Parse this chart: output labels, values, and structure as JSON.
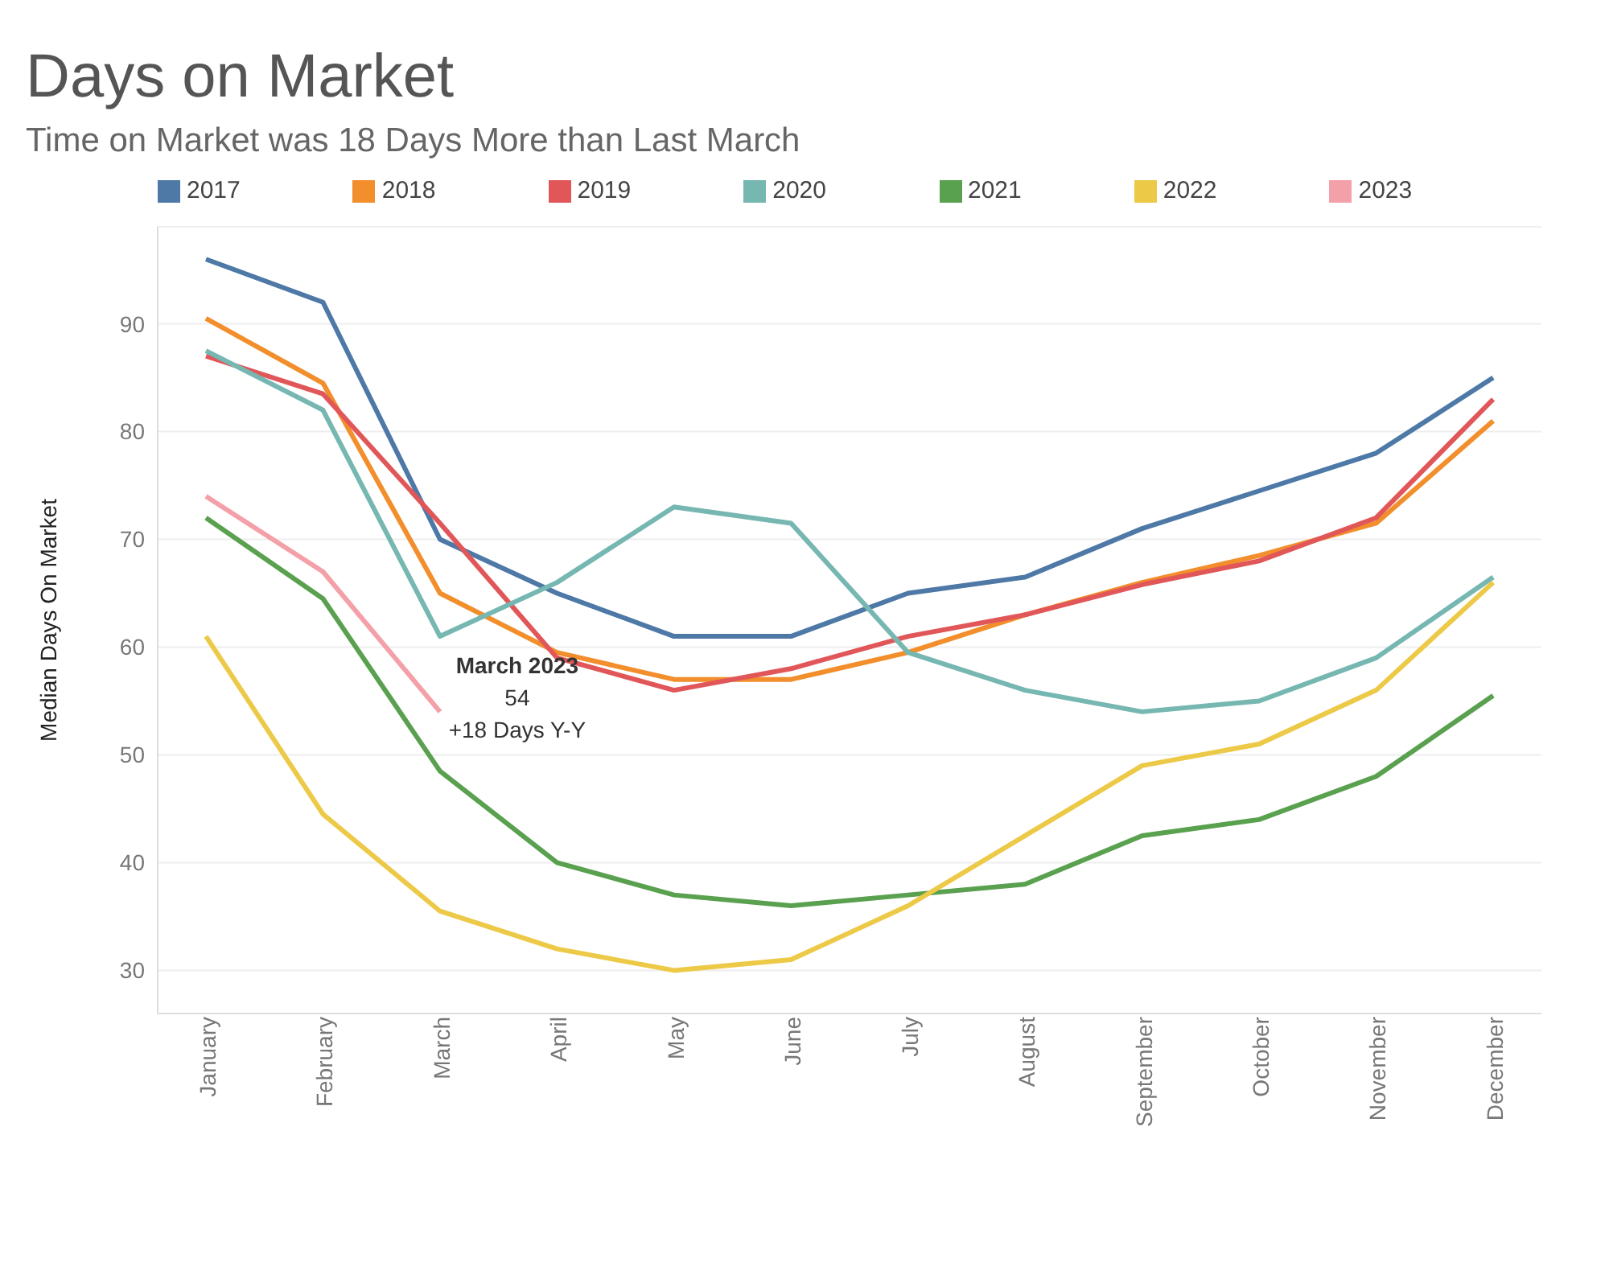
{
  "chart_data": {
    "type": "line",
    "title": "Days on Market",
    "subtitle": "Time on Market was 18 Days More than Last March",
    "ylabel": "Median Days On Market",
    "categories": [
      "January",
      "February",
      "March",
      "April",
      "May",
      "June",
      "July",
      "August",
      "September",
      "October",
      "November",
      "December"
    ],
    "series": [
      {
        "name": "2017",
        "color": "#4e79a7",
        "values": [
          96,
          92,
          70,
          65,
          61,
          61,
          65,
          66.5,
          71,
          74.5,
          78,
          85
        ]
      },
      {
        "name": "2018",
        "color": "#f28e2b",
        "values": [
          90.5,
          84.5,
          65,
          59.5,
          57,
          57,
          59.5,
          63,
          66,
          68.5,
          71.5,
          81
        ]
      },
      {
        "name": "2019",
        "color": "#e15759",
        "values": [
          87,
          83.5,
          71.5,
          59,
          56,
          58,
          61,
          63,
          65.8,
          68,
          72,
          83
        ]
      },
      {
        "name": "2020",
        "color": "#76b7b2",
        "values": [
          87.5,
          82,
          61,
          66,
          73,
          71.5,
          59.5,
          56,
          54,
          55,
          59,
          66.5
        ]
      },
      {
        "name": "2021",
        "color": "#59a14f",
        "values": [
          72,
          64.5,
          48.5,
          40,
          37,
          36,
          37,
          38,
          42.5,
          44,
          48,
          55.5
        ]
      },
      {
        "name": "2022",
        "color": "#edc948",
        "values": [
          61,
          44.5,
          35.5,
          32,
          30,
          31,
          36,
          42.5,
          49,
          51,
          56,
          66
        ]
      },
      {
        "name": "2023",
        "color": "#f4a0a8",
        "values": [
          74,
          67,
          54,
          null,
          null,
          null,
          null,
          null,
          null,
          null,
          null,
          null
        ]
      }
    ],
    "ylim": [
      26,
      99
    ],
    "yticks": [
      30,
      40,
      50,
      60,
      70,
      80,
      90
    ],
    "grid": "y",
    "legend": "top",
    "marker": "none",
    "line_style": "solid",
    "annotations": [
      {
        "text": "March 2023\n54\n+18 Days Y-Y",
        "x": "March",
        "y": 54
      }
    ]
  }
}
